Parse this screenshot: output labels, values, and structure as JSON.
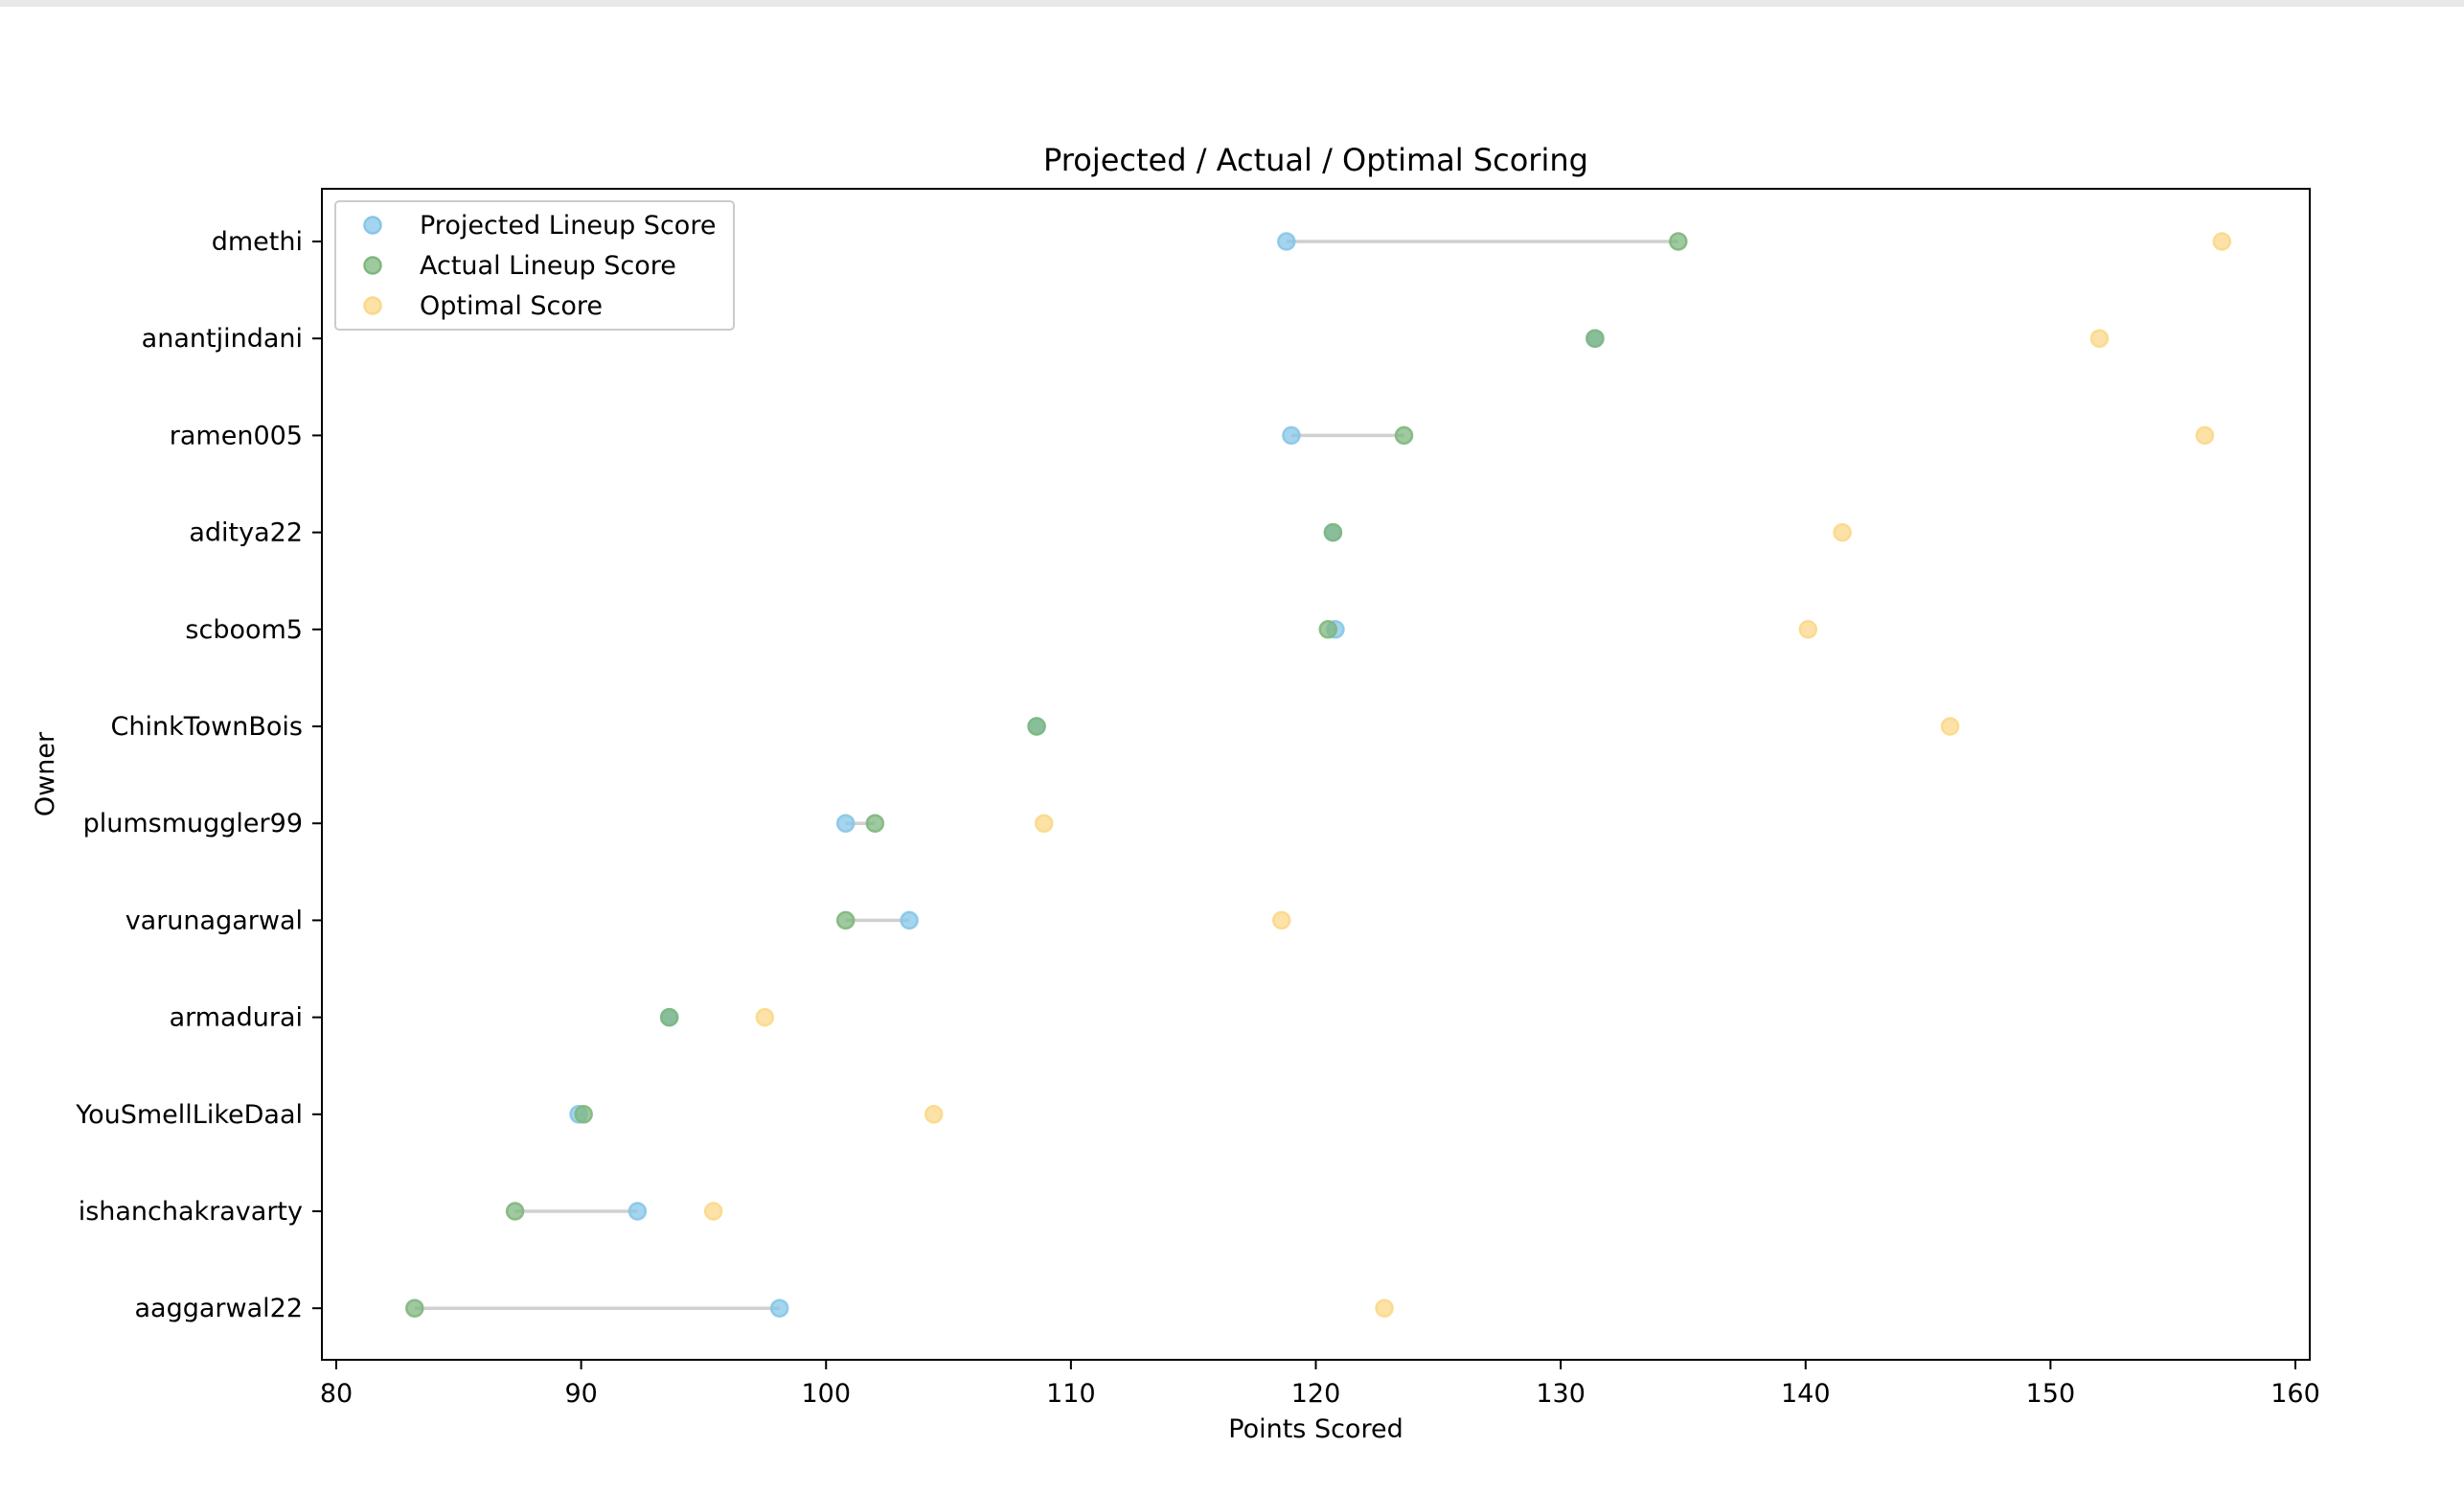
{
  "chart_data": {
    "type": "scatter",
    "title": "Projected / Actual / Optimal Scoring",
    "xlabel": "Points Scored",
    "ylabel": "Owner",
    "xlim": [
      80,
      160
    ],
    "xticks": [
      80,
      90,
      100,
      110,
      120,
      130,
      140,
      150,
      160
    ],
    "grid": false,
    "legend_position": "upper-left",
    "categories": [
      "dmethi",
      "anantjindani",
      "ramen005",
      "aditya22",
      "scboom5",
      "ChinkTownBois",
      "plumsmuggler99",
      "varunagarwal",
      "armadurai",
      "YouSmellLikeDaal",
      "ishanchakravarty",
      "aaggarwal22"
    ],
    "series": [
      {
        "name": "Projected Lineup Score",
        "color": "#87c6e8",
        "values": [
          118.8,
          131.4,
          119.0,
          120.7,
          120.8,
          108.6,
          100.8,
          103.4,
          93.6,
          89.9,
          92.3,
          98.1
        ]
      },
      {
        "name": "Actual Lineup Score",
        "color": "#7fb77e",
        "values": [
          134.8,
          131.4,
          123.6,
          120.7,
          120.5,
          108.6,
          102.0,
          100.8,
          93.6,
          90.1,
          87.3,
          83.2
        ]
      },
      {
        "name": "Optimal Score",
        "color": "#fbd88a",
        "values": [
          157.0,
          152.0,
          156.3,
          141.5,
          140.1,
          145.9,
          108.9,
          118.6,
          97.5,
          104.4,
          95.4,
          122.8
        ]
      }
    ],
    "connector_color": "#d0d0d0"
  }
}
